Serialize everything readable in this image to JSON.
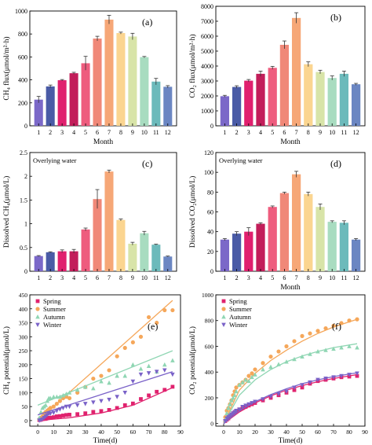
{
  "colors": {
    "months": [
      "#7b68c8",
      "#4a5ba6",
      "#e0206e",
      "#c21e5a",
      "#ee5c7e",
      "#f08878",
      "#f6a777",
      "#fbd590",
      "#d8e4a8",
      "#a8dcc0",
      "#6cbabb",
      "#6b86c2"
    ],
    "spring": "#e0226e",
    "summer": "#f5a75a",
    "autumn": "#8fd6b3",
    "winter": "#7a62c8"
  },
  "chart_data": [
    {
      "id": "a",
      "type": "bar",
      "panel_label": "(a)",
      "categories": [
        "1",
        "2",
        "3",
        "4",
        "5",
        "6",
        "7",
        "8",
        "9",
        "10",
        "11",
        "12"
      ],
      "values": [
        228,
        343,
        397,
        458,
        545,
        760,
        925,
        808,
        778,
        598,
        385,
        340
      ],
      "errors": [
        28,
        12,
        6,
        8,
        60,
        20,
        38,
        8,
        28,
        6,
        28,
        10
      ],
      "xlabel": "Month",
      "ylabel": "CH₄ flux(μmol/m²·h)",
      "ylim": [
        0,
        1000
      ],
      "yticks": [
        0,
        200,
        400,
        600,
        800,
        1000
      ],
      "annotation": ""
    },
    {
      "id": "b",
      "type": "bar",
      "panel_label": "(b)",
      "categories": [
        "1",
        "2",
        "3",
        "4",
        "5",
        "6",
        "7",
        "8",
        "9",
        "10",
        "11",
        "12"
      ],
      "values": [
        1980,
        2600,
        3020,
        3480,
        3880,
        5420,
        7220,
        4120,
        3600,
        3200,
        3480,
        2780
      ],
      "errors": [
        60,
        80,
        80,
        180,
        100,
        260,
        350,
        160,
        120,
        140,
        180,
        60
      ],
      "xlabel": "Month",
      "ylabel": "CO₂ flux(μmol/m²·h)",
      "ylim": [
        0,
        8000
      ],
      "yticks": [
        0,
        1000,
        2000,
        3000,
        4000,
        5000,
        6000,
        7000,
        8000
      ],
      "annotation": ""
    },
    {
      "id": "c",
      "type": "bar",
      "panel_label": "(c)",
      "categories": [
        "1",
        "2",
        "3",
        "4",
        "5",
        "6",
        "7",
        "8",
        "9",
        "10",
        "11",
        "12"
      ],
      "values": [
        0.32,
        0.4,
        0.42,
        0.42,
        0.88,
        1.52,
        2.1,
        1.08,
        0.58,
        0.8,
        0.56,
        0.31
      ],
      "errors": [
        0.01,
        0.01,
        0.03,
        0.04,
        0.03,
        0.2,
        0.03,
        0.02,
        0.03,
        0.04,
        0.01,
        0.01
      ],
      "xlabel": "",
      "ylabel": "Dissolved CH₄(μmol/L)",
      "ylim": [
        0,
        2.5
      ],
      "yticks": [
        0,
        0.5,
        1.0,
        1.5,
        2.0,
        2.5
      ],
      "annotation": "Overlying water"
    },
    {
      "id": "d",
      "type": "bar",
      "panel_label": "(d)",
      "categories": [
        "1",
        "2",
        "3",
        "4",
        "5",
        "6",
        "7",
        "8",
        "9",
        "10",
        "11",
        "12"
      ],
      "values": [
        32,
        38,
        40,
        48,
        65,
        79,
        98,
        78,
        65,
        50,
        49,
        32
      ],
      "errors": [
        1,
        2,
        4,
        1,
        1,
        1,
        3,
        2,
        3,
        1,
        2,
        1
      ],
      "xlabel": "Month",
      "ylabel": "Dissolved CO₂(μmol/L)",
      "ylim": [
        0,
        120
      ],
      "yticks": [
        0,
        20,
        40,
        60,
        80,
        100,
        120
      ],
      "annotation": "Overlying water"
    },
    {
      "id": "e",
      "type": "scatter",
      "panel_label": "(e)",
      "xlabel": "Time(d)",
      "ylabel": "CH₄ potential(μmol/L)",
      "xlim": [
        -5,
        90
      ],
      "ylim": [
        -20,
        450
      ],
      "xticks": [
        0,
        10,
        20,
        30,
        40,
        50,
        60,
        70,
        80,
        90
      ],
      "yticks": [
        0,
        50,
        100,
        150,
        200,
        250,
        300,
        350,
        400,
        450
      ],
      "legend": "top-left",
      "series": [
        {
          "name": "Spring",
          "marker": "square",
          "color_key": "spring",
          "x": [
            1,
            2,
            3,
            4,
            5,
            6,
            7,
            8,
            10,
            12,
            14,
            16,
            18,
            20,
            25,
            30,
            35,
            40,
            45,
            50,
            55,
            60,
            65,
            70,
            75,
            80,
            85
          ],
          "y": [
            2,
            3,
            5,
            6,
            6,
            8,
            10,
            10,
            12,
            15,
            16,
            18,
            20,
            21,
            23,
            26,
            31,
            34,
            38,
            45,
            55,
            61,
            77,
            90,
            103,
            110,
            121
          ],
          "fit": [
            [
              0,
              0
            ],
            [
              20,
              10
            ],
            [
              40,
              27
            ],
            [
              60,
              55
            ],
            [
              85,
              118
            ]
          ]
        },
        {
          "name": "Summer",
          "marker": "circle",
          "color_key": "summer",
          "x": [
            1,
            2,
            3,
            4,
            5,
            6,
            7,
            8,
            10,
            12,
            14,
            16,
            18,
            20,
            25,
            30,
            35,
            40,
            45,
            50,
            55,
            60,
            65,
            70,
            75,
            80,
            85
          ],
          "y": [
            5,
            10,
            15,
            25,
            30,
            35,
            40,
            45,
            50,
            60,
            70,
            80,
            85,
            80,
            100,
            120,
            150,
            160,
            180,
            230,
            260,
            280,
            300,
            370,
            350,
            395,
            395
          ],
          "fit": [
            [
              0,
              0
            ],
            [
              85,
              430
            ]
          ]
        },
        {
          "name": "Autumn",
          "marker": "triangle-up",
          "color_key": "autumn",
          "x": [
            1,
            2,
            3,
            4,
            5,
            6,
            7,
            8,
            10,
            12,
            14,
            16,
            18,
            20,
            25,
            30,
            35,
            40,
            45,
            50,
            55,
            60,
            65,
            70,
            75,
            80,
            85
          ],
          "y": [
            10,
            30,
            45,
            50,
            55,
            70,
            80,
            80,
            85,
            85,
            85,
            90,
            95,
            100,
            110,
            120,
            115,
            140,
            135,
            160,
            160,
            200,
            185,
            195,
            175,
            200,
            215
          ],
          "fit": [
            [
              0,
              55
            ],
            [
              85,
              250
            ]
          ]
        },
        {
          "name": "Winter",
          "marker": "triangle-down",
          "color_key": "winter",
          "x": [
            1,
            2,
            3,
            4,
            5,
            6,
            7,
            8,
            10,
            12,
            14,
            16,
            18,
            20,
            25,
            30,
            35,
            40,
            45,
            50,
            55,
            60,
            65,
            70,
            75,
            80,
            85
          ],
          "y": [
            0,
            2,
            5,
            10,
            15,
            20,
            25,
            25,
            28,
            35,
            40,
            45,
            50,
            50,
            55,
            60,
            65,
            70,
            75,
            85,
            100,
            140,
            165,
            170,
            175,
            180,
            165
          ],
          "fit": [
            [
              0,
              20
            ],
            [
              85,
              175
            ]
          ]
        }
      ]
    },
    {
      "id": "f",
      "type": "scatter",
      "panel_label": "(f)",
      "xlabel": "Time(d)",
      "ylabel": "CO₂ potential(μmol/L)",
      "xlim": [
        -5,
        90
      ],
      "ylim": [
        -20,
        1000
      ],
      "xticks": [
        0,
        10,
        20,
        30,
        40,
        50,
        60,
        70,
        80,
        90
      ],
      "yticks": [
        0,
        200,
        400,
        600,
        800,
        1000
      ],
      "legend": "top-left",
      "series": [
        {
          "name": "Spring",
          "marker": "square",
          "color_key": "spring",
          "x": [
            1,
            2,
            3,
            4,
            5,
            6,
            7,
            8,
            10,
            12,
            14,
            16,
            18,
            20,
            25,
            30,
            35,
            40,
            45,
            50,
            55,
            60,
            65,
            70,
            75,
            80,
            85
          ],
          "y": [
            20,
            30,
            40,
            60,
            70,
            80,
            90,
            100,
            110,
            120,
            130,
            140,
            150,
            160,
            180,
            200,
            220,
            240,
            260,
            280,
            310,
            330,
            340,
            350,
            360,
            365,
            370
          ],
          "fit": [
            [
              0,
              0
            ],
            [
              10,
              90
            ],
            [
              20,
              160
            ],
            [
              30,
              215
            ],
            [
              40,
              260
            ],
            [
              50,
              295
            ],
            [
              60,
              325
            ],
            [
              70,
              350
            ],
            [
              85,
              380
            ]
          ]
        },
        {
          "name": "Summer",
          "marker": "circle",
          "color_key": "summer",
          "x": [
            1,
            2,
            3,
            4,
            5,
            6,
            7,
            8,
            10,
            12,
            14,
            16,
            18,
            20,
            25,
            30,
            35,
            40,
            45,
            50,
            55,
            60,
            65,
            70,
            75,
            80,
            85
          ],
          "y": [
            50,
            100,
            120,
            150,
            180,
            220,
            250,
            280,
            300,
            320,
            340,
            370,
            390,
            420,
            470,
            520,
            560,
            600,
            640,
            680,
            700,
            720,
            740,
            760,
            780,
            800,
            810
          ],
          "fit": [
            [
              0,
              0
            ],
            [
              10,
              260
            ],
            [
              20,
              390
            ],
            [
              30,
              490
            ],
            [
              40,
              570
            ],
            [
              50,
              640
            ],
            [
              60,
              700
            ],
            [
              70,
              750
            ],
            [
              85,
              810
            ]
          ]
        },
        {
          "name": "Autumn",
          "marker": "triangle-up",
          "color_key": "autumn",
          "x": [
            1,
            2,
            3,
            4,
            5,
            6,
            7,
            8,
            10,
            12,
            14,
            16,
            18,
            20,
            25,
            30,
            35,
            40,
            45,
            50,
            55,
            60,
            65,
            70,
            75,
            80,
            85
          ],
          "y": [
            30,
            80,
            120,
            150,
            180,
            200,
            220,
            250,
            300,
            320,
            340,
            330,
            360,
            380,
            420,
            440,
            460,
            480,
            500,
            520,
            540,
            560,
            570,
            580,
            590,
            600,
            590
          ],
          "fit": [
            [
              0,
              0
            ],
            [
              10,
              220
            ],
            [
              20,
              340
            ],
            [
              30,
              420
            ],
            [
              40,
              480
            ],
            [
              50,
              525
            ],
            [
              60,
              560
            ],
            [
              70,
              590
            ],
            [
              85,
              620
            ]
          ]
        },
        {
          "name": "Winter",
          "marker": "triangle-down",
          "color_key": "winter",
          "x": [
            1,
            2,
            3,
            4,
            5,
            6,
            7,
            8,
            10,
            12,
            14,
            16,
            18,
            20,
            25,
            30,
            35,
            40,
            45,
            50,
            55,
            60,
            65,
            70,
            75,
            80,
            85
          ],
          "y": [
            20,
            40,
            50,
            60,
            70,
            80,
            90,
            100,
            110,
            130,
            140,
            150,
            160,
            170,
            190,
            210,
            230,
            250,
            280,
            300,
            320,
            340,
            350,
            360,
            370,
            380,
            390
          ],
          "fit": [
            [
              0,
              0
            ],
            [
              10,
              100
            ],
            [
              20,
              170
            ],
            [
              30,
              225
            ],
            [
              40,
              270
            ],
            [
              50,
              310
            ],
            [
              60,
              340
            ],
            [
              70,
              365
            ],
            [
              85,
              395
            ]
          ]
        }
      ]
    }
  ]
}
